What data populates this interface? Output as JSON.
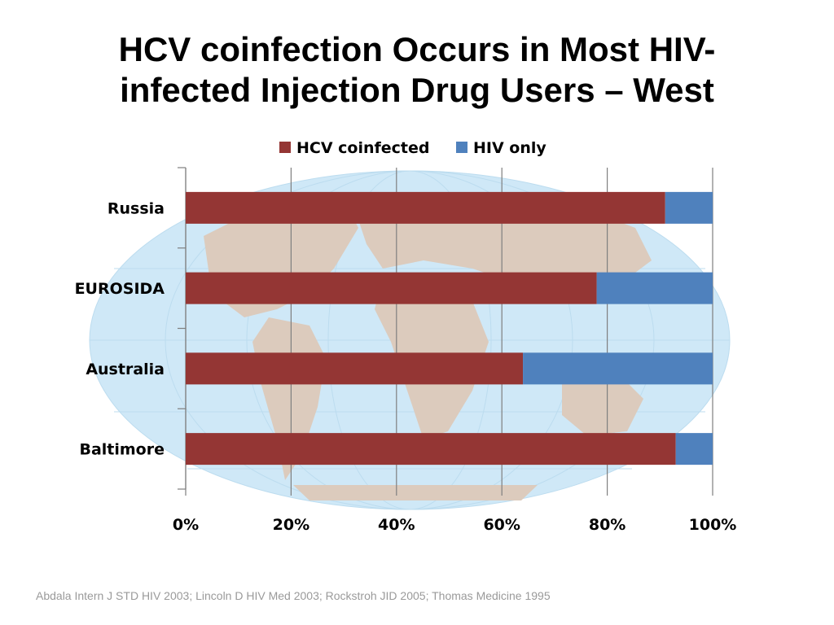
{
  "slide": {
    "title_line1": "HCV coinfection Occurs in Most HIV-",
    "title_line2": "infected Injection Drug Users – West",
    "citation": "Abdala Intern J STD HIV 2003; Lincoln D HIV Med 2003; Rockstroh JID 2005; Thomas Medicine 1995"
  },
  "chart_data": {
    "type": "bar",
    "orientation": "horizontal",
    "stacked": true,
    "percent_stacked": true,
    "categories": [
      "Russia",
      "EUROSIDA",
      "Australia",
      "Baltimore"
    ],
    "series": [
      {
        "name": "HCV coinfected",
        "color": "#943634",
        "values": [
          91,
          78,
          64,
          93
        ]
      },
      {
        "name": "HIV only",
        "color": "#4f81bd",
        "values": [
          9,
          22,
          36,
          7
        ]
      }
    ],
    "x_ticks": [
      "0%",
      "20%",
      "40%",
      "60%",
      "80%",
      "100%"
    ],
    "xlim": [
      0,
      100
    ],
    "grid": true,
    "legend_position": "top",
    "background_image": "world-map"
  }
}
